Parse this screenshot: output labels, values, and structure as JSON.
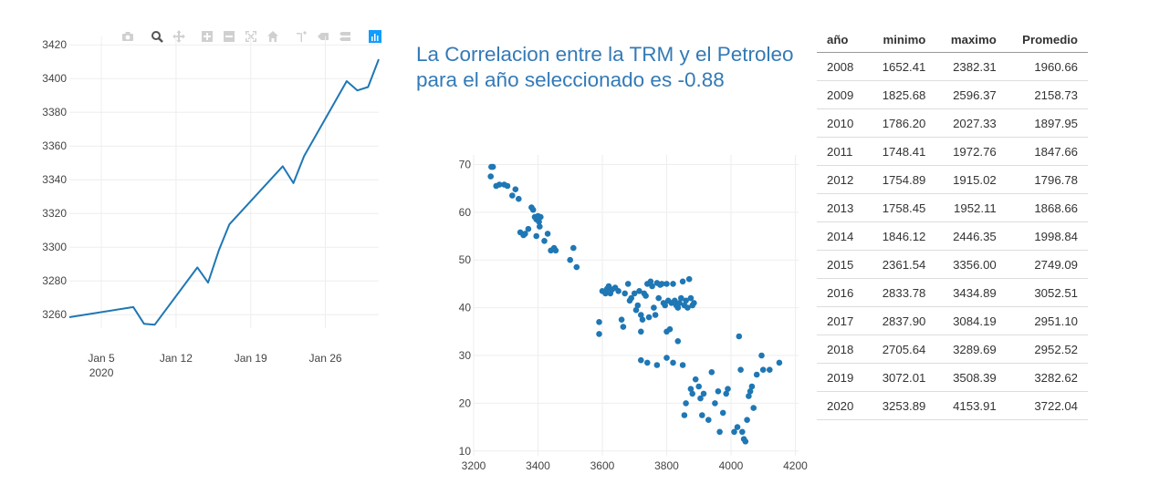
{
  "corr": {
    "text": "La Correlacion entre la TRM y el Petroleo para el año seleccionado es",
    "value": "-0.88"
  },
  "modebar": {
    "icons": [
      "camera-icon",
      "zoom-icon",
      "pan-icon",
      "zoom-in-icon",
      "zoom-out-icon",
      "autoscale-icon",
      "reset-axes-icon",
      "spike-lines-icon",
      "hover-closest-icon",
      "hover-compare-icon",
      "plotly-logo-icon"
    ],
    "colors": {
      "inactive": "#d0d0d0",
      "active": "#555555",
      "logo": "#3f4f75"
    }
  },
  "table": {
    "headers": [
      "año",
      "minimo",
      "maximo",
      "Promedio"
    ],
    "rows": [
      [
        "2008",
        "1652.41",
        "2382.31",
        "1960.66"
      ],
      [
        "2009",
        "1825.68",
        "2596.37",
        "2158.73"
      ],
      [
        "2010",
        "1786.20",
        "2027.33",
        "1897.95"
      ],
      [
        "2011",
        "1748.41",
        "1972.76",
        "1847.66"
      ],
      [
        "2012",
        "1754.89",
        "1915.02",
        "1796.78"
      ],
      [
        "2013",
        "1758.45",
        "1952.11",
        "1868.66"
      ],
      [
        "2014",
        "1846.12",
        "2446.35",
        "1998.84"
      ],
      [
        "2015",
        "2361.54",
        "3356.00",
        "2749.09"
      ],
      [
        "2016",
        "2833.78",
        "3434.89",
        "3052.51"
      ],
      [
        "2017",
        "2837.90",
        "3084.19",
        "2951.10"
      ],
      [
        "2018",
        "2705.64",
        "3289.69",
        "2952.52"
      ],
      [
        "2019",
        "3072.01",
        "3508.39",
        "3282.62"
      ],
      [
        "2020",
        "3253.89",
        "4153.91",
        "3722.04"
      ]
    ]
  },
  "chart_data": [
    {
      "type": "line",
      "title": "",
      "xlabel": "",
      "ylabel": "",
      "color": "#1f77b4",
      "x": [
        "2020-01-02",
        "2020-01-08",
        "2020-01-09",
        "2020-01-10",
        "2020-01-14",
        "2020-01-15",
        "2020-01-16",
        "2020-01-17",
        "2020-01-22",
        "2020-01-23",
        "2020-01-24",
        "2020-01-28",
        "2020-01-29",
        "2020-01-30",
        "2020-01-31"
      ],
      "y": [
        3258.5,
        3264.5,
        3254.6,
        3254.0,
        3288.0,
        3279.0,
        3298.0,
        3313.5,
        3348.0,
        3338.0,
        3354.0,
        3398.5,
        3393.0,
        3395.0,
        3411.5
      ],
      "xticks": [
        {
          "date": "2020-01-05",
          "label": "Jan 5",
          "sub": "2020"
        },
        {
          "date": "2020-01-12",
          "label": "Jan 12",
          "sub": ""
        },
        {
          "date": "2020-01-19",
          "label": "Jan 19",
          "sub": ""
        },
        {
          "date": "2020-01-26",
          "label": "Jan 26",
          "sub": ""
        }
      ],
      "yticks": [
        3260,
        3280,
        3300,
        3320,
        3340,
        3360,
        3380,
        3400,
        3420
      ],
      "xrange": [
        "2020-01-02",
        "2020-01-31"
      ],
      "ylim": [
        3252,
        3425
      ],
      "grid": true
    },
    {
      "type": "scatter",
      "title": "",
      "xlabel": "",
      "ylabel": "",
      "color": "#1f77b4",
      "xlim": [
        3200,
        4210
      ],
      "ylim": [
        9,
        72
      ],
      "xticks": [
        3200,
        3400,
        3600,
        3800,
        4000,
        4200
      ],
      "yticks": [
        10,
        20,
        30,
        40,
        50,
        60,
        70
      ],
      "grid": true,
      "points": [
        [
          3253,
          67.5
        ],
        [
          3255,
          69.5
        ],
        [
          3260,
          69.5
        ],
        [
          3270,
          65.5
        ],
        [
          3280,
          65.8
        ],
        [
          3295,
          65.8
        ],
        [
          3305,
          65.5
        ],
        [
          3320,
          63.5
        ],
        [
          3330,
          64.8
        ],
        [
          3340,
          62.8
        ],
        [
          3345,
          55.8
        ],
        [
          3355,
          55.2
        ],
        [
          3360,
          55.5
        ],
        [
          3370,
          56.5
        ],
        [
          3380,
          61.0
        ],
        [
          3385,
          60.5
        ],
        [
          3390,
          59.0
        ],
        [
          3395,
          58.5
        ],
        [
          3400,
          59.2
        ],
        [
          3403,
          58.0
        ],
        [
          3405,
          57.0
        ],
        [
          3408,
          59.0
        ],
        [
          3395,
          55.0
        ],
        [
          3420,
          54.0
        ],
        [
          3430,
          55.5
        ],
        [
          3440,
          52.0
        ],
        [
          3450,
          52.5
        ],
        [
          3455,
          52.0
        ],
        [
          3500,
          50.0
        ],
        [
          3510,
          52.5
        ],
        [
          3520,
          48.5
        ],
        [
          3590,
          37.0
        ],
        [
          3600,
          43.5
        ],
        [
          3610,
          43.0
        ],
        [
          3615,
          44.0
        ],
        [
          3620,
          44.5
        ],
        [
          3625,
          43.0
        ],
        [
          3630,
          43.8
        ],
        [
          3640,
          44.2
        ],
        [
          3650,
          43.5
        ],
        [
          3660,
          37.5
        ],
        [
          3665,
          36.0
        ],
        [
          3670,
          43.0
        ],
        [
          3680,
          45.0
        ],
        [
          3685,
          41.5
        ],
        [
          3690,
          42.0
        ],
        [
          3700,
          43.0
        ],
        [
          3705,
          39.5
        ],
        [
          3710,
          40.5
        ],
        [
          3715,
          43.5
        ],
        [
          3720,
          38.5
        ],
        [
          3725,
          37.5
        ],
        [
          3730,
          43.0
        ],
        [
          3735,
          42.5
        ],
        [
          3740,
          45.0
        ],
        [
          3745,
          38.0
        ],
        [
          3750,
          45.5
        ],
        [
          3755,
          44.5
        ],
        [
          3760,
          40.0
        ],
        [
          3765,
          38.5
        ],
        [
          3770,
          45.2
        ],
        [
          3775,
          42.0
        ],
        [
          3780,
          44.8
        ],
        [
          3785,
          45.0
        ],
        [
          3790,
          41.0
        ],
        [
          3795,
          40.5
        ],
        [
          3800,
          45.0
        ],
        [
          3805,
          41.5
        ],
        [
          3810,
          35.5
        ],
        [
          3815,
          41.0
        ],
        [
          3820,
          45.0
        ],
        [
          3825,
          41.5
        ],
        [
          3830,
          40.5
        ],
        [
          3835,
          40.0
        ],
        [
          3840,
          41.0
        ],
        [
          3845,
          42.0
        ],
        [
          3850,
          45.5
        ],
        [
          3855,
          40.5
        ],
        [
          3860,
          41.5
        ],
        [
          3865,
          40.0
        ],
        [
          3870,
          46.0
        ],
        [
          3875,
          42.0
        ],
        [
          3880,
          40.5
        ],
        [
          3885,
          41.0
        ],
        [
          3590,
          34.5
        ],
        [
          3720,
          35.0
        ],
        [
          3800,
          35.0
        ],
        [
          3835,
          33.0
        ],
        [
          3720,
          29.0
        ],
        [
          3740,
          28.5
        ],
        [
          3770,
          28.0
        ],
        [
          3800,
          29.5
        ],
        [
          3820,
          28.5
        ],
        [
          3850,
          28.0
        ],
        [
          3855,
          17.5
        ],
        [
          3860,
          20.0
        ],
        [
          3875,
          23.0
        ],
        [
          3880,
          22.0
        ],
        [
          3890,
          25.0
        ],
        [
          3900,
          23.5
        ],
        [
          3905,
          21.0
        ],
        [
          3910,
          17.5
        ],
        [
          3915,
          22.0
        ],
        [
          3930,
          16.5
        ],
        [
          3940,
          26.5
        ],
        [
          3950,
          20.0
        ],
        [
          3960,
          22.5
        ],
        [
          3965,
          14.0
        ],
        [
          3975,
          18.0
        ],
        [
          3985,
          22.0
        ],
        [
          3990,
          23.0
        ],
        [
          4010,
          14.0
        ],
        [
          4020,
          15.0
        ],
        [
          4025,
          34.0
        ],
        [
          4030,
          27.0
        ],
        [
          4035,
          14.0
        ],
        [
          4040,
          12.5
        ],
        [
          4045,
          12.0
        ],
        [
          4050,
          16.5
        ],
        [
          4055,
          21.5
        ],
        [
          4060,
          22.5
        ],
        [
          4065,
          23.5
        ],
        [
          4070,
          19.0
        ],
        [
          4080,
          26.0
        ],
        [
          4095,
          30.0
        ],
        [
          4100,
          27.0
        ],
        [
          4120,
          27.0
        ],
        [
          4150,
          28.5
        ]
      ]
    }
  ]
}
